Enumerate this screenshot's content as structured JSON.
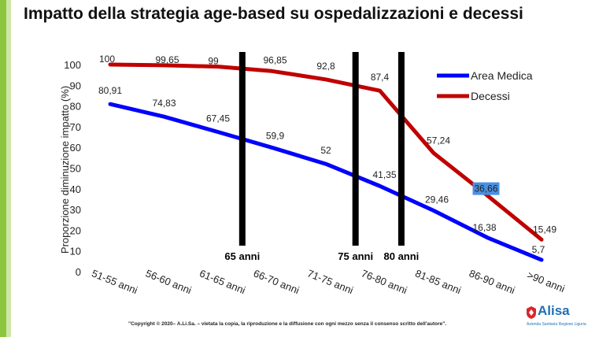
{
  "title": "Impatto della strategia age-based su ospedalizzazioni e decessi",
  "footer": "\"Copyright © 2020– A.Li.Sa. – vietata la copia, la riproduzione e la diffusione con ogni mezzo senza il consenso scritto dell'autore\".",
  "logo": {
    "name": "Alisa",
    "subtitle": "Azienda Sanitaria Regione Liguria",
    "color": "#1f6fb5"
  },
  "chart_data": {
    "type": "line",
    "ylabel": "Proporzione diminuzione impatto (%)",
    "xlabel": "",
    "ylim": [
      0,
      100
    ],
    "yticks": [
      0,
      10,
      20,
      30,
      40,
      50,
      60,
      70,
      80,
      90,
      100
    ],
    "grid": false,
    "legend_position": "top-right",
    "categories": [
      "51-55 anni",
      "56-60 anni",
      "61-65 anni",
      "66-70 anni",
      "71-75 anni",
      "76-80 anni",
      "81-85 anni",
      "86-90 anni",
      ">90 anni"
    ],
    "series": [
      {
        "name": "Area Medica",
        "color": "#0000ff",
        "values": [
          80.91,
          74.83,
          67.45,
          59.9,
          52,
          41.35,
          29.46,
          16.38,
          5.7
        ],
        "labels": [
          "80,91",
          "74,83",
          "67,45",
          "59,9",
          "52",
          "41,35",
          "29,46",
          "16,38",
          "5,7"
        ]
      },
      {
        "name": "Decessi",
        "color": "#c00000",
        "values": [
          100,
          99.65,
          99,
          96.85,
          92.8,
          87.4,
          57.24,
          36.66,
          15.49
        ],
        "labels": [
          "100",
          "99,65",
          "99",
          "96,85",
          "92,8",
          "87,4",
          "57,24",
          "36,66",
          "15,49"
        ]
      }
    ],
    "thresholds": [
      {
        "label": "65 anni",
        "position": 2.45
      },
      {
        "label": "75 anni",
        "position": 4.55
      },
      {
        "label": "80 anni",
        "position": 5.4
      }
    ]
  }
}
